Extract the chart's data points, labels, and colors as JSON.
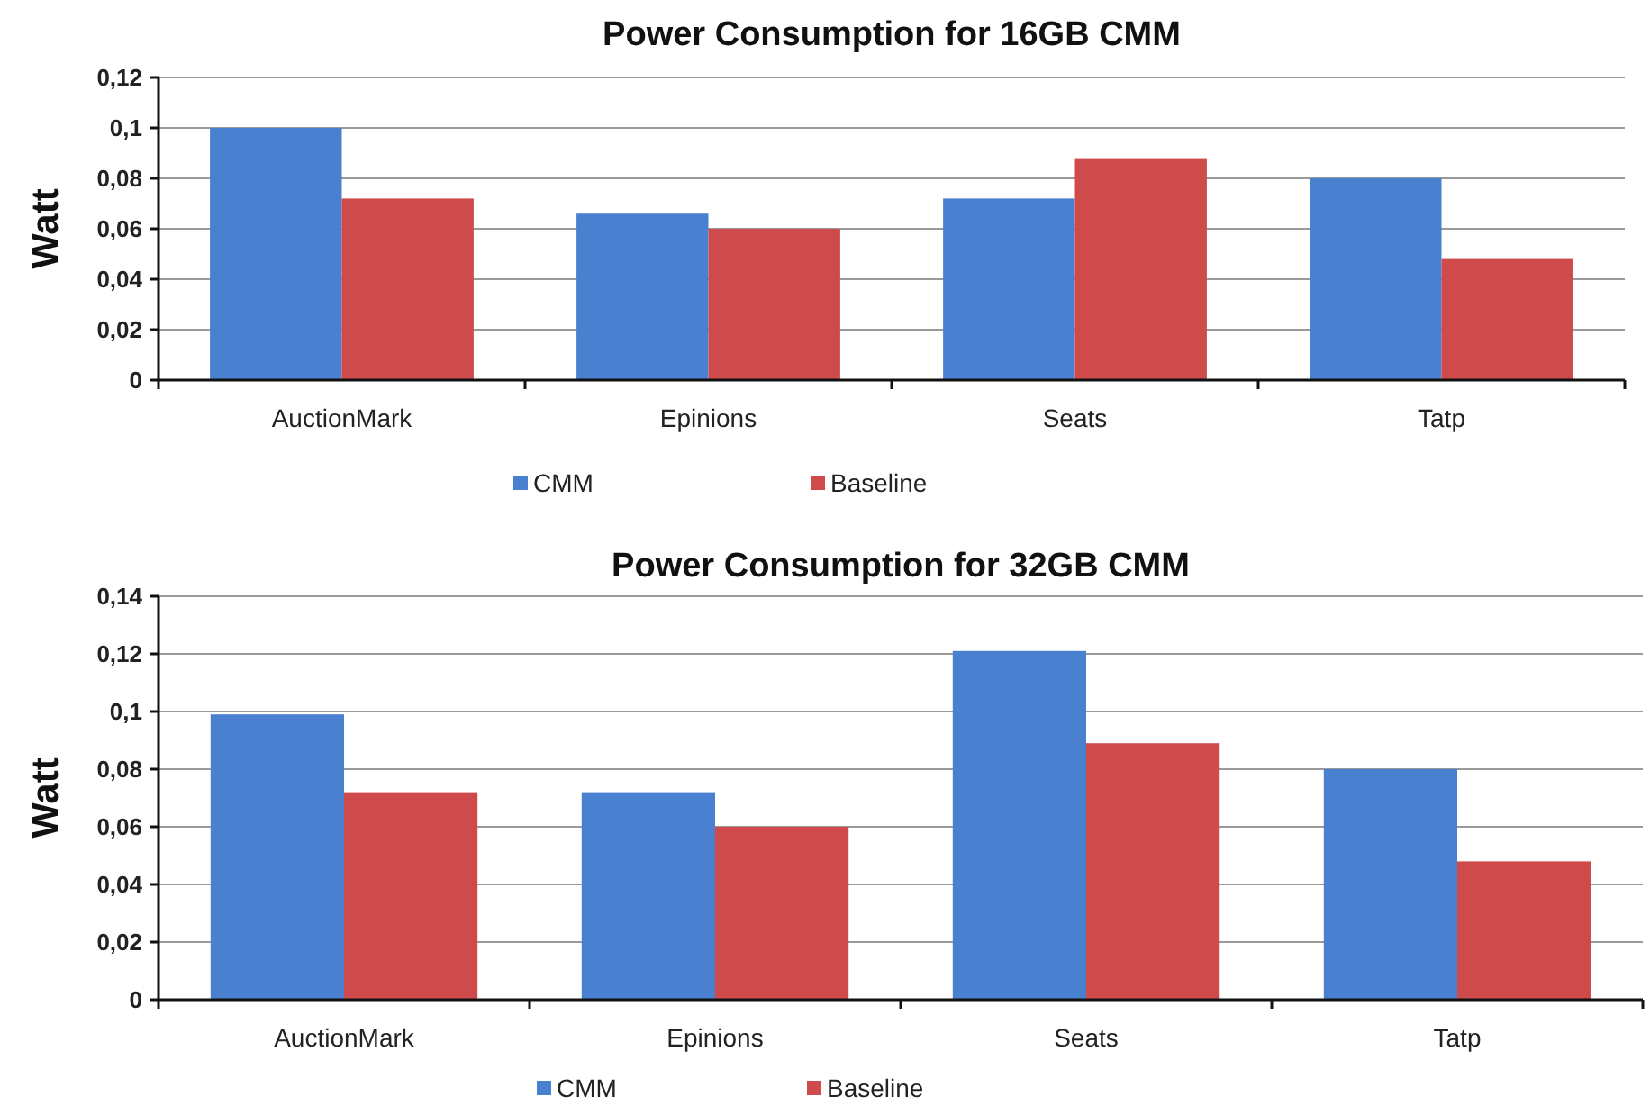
{
  "chart_data": [
    {
      "type": "bar",
      "title": "Power Consumption for 16GB CMM",
      "ylabel": "Watt",
      "categories": [
        "AuctionMark",
        "Epinions",
        "Seats",
        "Tatp"
      ],
      "series": [
        {
          "name": "CMM",
          "color": "#4a80d0",
          "values": [
            0.1,
            0.066,
            0.072,
            0.08
          ]
        },
        {
          "name": "Baseline",
          "color": "#cf4a4a",
          "values": [
            0.072,
            0.06,
            0.088,
            0.048
          ]
        }
      ],
      "ylim": [
        0,
        0.12
      ],
      "yticks": [
        0,
        {
          "value": 0.02,
          "label": "0,02"
        },
        {
          "value": 0.04,
          "label": "0,04"
        },
        {
          "value": 0.06,
          "label": "0,06"
        },
        {
          "value": 0.08,
          "label": "0,08"
        },
        {
          "value": 0.1,
          "label": "0,1"
        },
        {
          "value": 0.12,
          "label": "0,12"
        }
      ],
      "grid": "y",
      "legend": "bottom"
    },
    {
      "type": "bar",
      "title": "Power Consumption for 32GB CMM",
      "ylabel": "Watt",
      "categories": [
        "AuctionMark",
        "Epinions",
        "Seats",
        "Tatp"
      ],
      "series": [
        {
          "name": "CMM",
          "color": "#4a80d0",
          "values": [
            0.099,
            0.072,
            0.121,
            0.08
          ]
        },
        {
          "name": "Baseline",
          "color": "#cf4a4a",
          "values": [
            0.072,
            0.06,
            0.089,
            0.048
          ]
        }
      ],
      "ylim": [
        0,
        0.14
      ],
      "yticks": [
        0,
        {
          "value": 0.02,
          "label": "0,02"
        },
        {
          "value": 0.04,
          "label": "0,04"
        },
        {
          "value": 0.06,
          "label": "0,06"
        },
        {
          "value": 0.08,
          "label": "0,08"
        },
        {
          "value": 0.1,
          "label": "0,1"
        },
        {
          "value": 0.12,
          "label": "0,12"
        },
        {
          "value": 0.14,
          "label": "0,14"
        }
      ],
      "grid": "y",
      "legend": "bottom"
    }
  ]
}
